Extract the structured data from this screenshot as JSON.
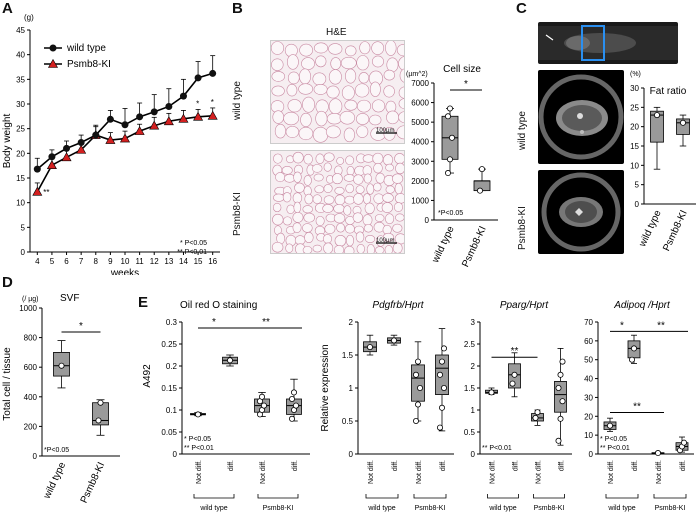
{
  "panels": {
    "A": "A",
    "B": "B",
    "C": "C",
    "D": "D",
    "E": "E"
  },
  "panelA": {
    "unit": "(g)",
    "notes": [
      "* P<0.05",
      "** P<0.01"
    ],
    "stars": {
      "s4": "**",
      "s15": "*",
      "s16": "*"
    }
  },
  "panelB": {
    "stain_title": "H&E",
    "row_wt": "wild type",
    "row_ki": "Psmb8-KI",
    "scale": "100µm",
    "note": "*P<0.05",
    "star": "*",
    "unit": "(µm^2)"
  },
  "panelC": {
    "row_wt": "wild type",
    "row_ki": "Psmb8-KI",
    "unit": "(%)"
  },
  "panelD": {
    "unit": "(/ µg)",
    "note": "*P<0.05",
    "star": "*"
  },
  "panelE": {
    "notes_a": [
      "* P<0.05",
      "** P<0.01"
    ],
    "note_c": "** P<0.01",
    "notes_d": [
      "* P<0.05",
      "** P<0.01"
    ],
    "cond": [
      "Not diff.",
      "diff.",
      "Not diff.",
      "diff."
    ],
    "groups": [
      "wild type",
      "Psmb8-KI"
    ]
  },
  "colors": {
    "wt": "#111111",
    "ki": "#d32020",
    "box": "#9a9a9a"
  },
  "chart_data": [
    {
      "type": "line",
      "title": "",
      "xlabel": "weeks",
      "ylabel": "Body weight",
      "x": [
        4,
        5,
        6,
        7,
        8,
        9,
        10,
        11,
        12,
        13,
        14,
        15,
        16
      ],
      "xlim": [
        3.5,
        16.5
      ],
      "ylim": [
        0,
        45
      ],
      "series": [
        {
          "name": "wild type",
          "values": [
            16.8,
            19.3,
            21.0,
            22.2,
            23.7,
            26.9,
            25.8,
            27.4,
            28.4,
            29.5,
            31.6,
            35.3,
            36.2
          ],
          "err": [
            2.2,
            1.4,
            1.5,
            1.5,
            2.0,
            1.8,
            3.3,
            2.8,
            3.5,
            3.6,
            3.4,
            3.3,
            3.6
          ]
        },
        {
          "name": "Psmb8-KI",
          "values": [
            12.2,
            17.6,
            19.2,
            20.7,
            23.7,
            22.7,
            23.0,
            24.5,
            25.6,
            26.5,
            27.0,
            27.4,
            27.6
          ],
          "err": [
            1.8,
            1.4,
            1.6,
            1.5,
            1.7,
            1.5,
            1.5,
            1.4,
            1.7,
            1.6,
            1.7,
            1.5,
            1.6
          ]
        }
      ]
    },
    {
      "type": "box",
      "title": "Cell size",
      "categories": [
        "wild type",
        "Psmb8-KI"
      ],
      "ylim": [
        0,
        7000
      ],
      "boxes": [
        {
          "min": 2400,
          "q1": 3100,
          "median": 4200,
          "q3": 5300,
          "max": 5700,
          "points": [
            2400,
            3100,
            4200,
            5300,
            5700
          ]
        },
        {
          "min": 1500,
          "q1": 1500,
          "median": 2000,
          "q3": 2000,
          "max": 2600,
          "points": [
            1500,
            2600
          ]
        }
      ]
    },
    {
      "type": "box",
      "title": "Fat ratio",
      "categories": [
        "wild type",
        "Psmb8-KI"
      ],
      "ylim": [
        0,
        30
      ],
      "boxes": [
        {
          "min": 9,
          "q1": 16,
          "median": 23,
          "q3": 24,
          "max": 25,
          "points": [
            23
          ]
        },
        {
          "min": 15,
          "q1": 18,
          "median": 21,
          "q3": 22,
          "max": 23,
          "points": [
            21
          ]
        }
      ]
    },
    {
      "type": "box",
      "title": "SVF",
      "ylabel": "Total cell / tissue",
      "categories": [
        "wild type",
        "Psmb8-KI"
      ],
      "ylim": [
        0,
        1000
      ],
      "boxes": [
        {
          "min": 460,
          "q1": 540,
          "median": 610,
          "q3": 700,
          "max": 780,
          "points": [
            610
          ]
        },
        {
          "min": 140,
          "q1": 210,
          "median": 240,
          "q3": 360,
          "max": 380,
          "points": [
            240,
            360
          ]
        }
      ]
    },
    {
      "type": "box",
      "title": "Oil red O staining",
      "ylabel": "A492",
      "categories": [
        "Not diff.",
        "diff.",
        "Not diff.",
        "diff."
      ],
      "ylim": [
        0,
        0.3
      ],
      "boxes": [
        {
          "min": 0.087,
          "q1": 0.089,
          "median": 0.09,
          "q3": 0.092,
          "max": 0.094,
          "points": [
            0.09
          ]
        },
        {
          "min": 0.2,
          "q1": 0.205,
          "median": 0.213,
          "q3": 0.22,
          "max": 0.225,
          "points": [
            0.213
          ]
        },
        {
          "min": 0.085,
          "q1": 0.095,
          "median": 0.11,
          "q3": 0.125,
          "max": 0.14,
          "points": [
            0.09,
            0.1,
            0.11,
            0.12,
            0.13
          ]
        },
        {
          "min": 0.075,
          "q1": 0.09,
          "median": 0.11,
          "q3": 0.125,
          "max": 0.17,
          "points": [
            0.08,
            0.1,
            0.11,
            0.125,
            0.14
          ]
        }
      ]
    },
    {
      "type": "box",
      "title": "Pdgfrb/Hprt",
      "ylabel": "Relative expression",
      "categories": [
        "Not diff.",
        "diff.",
        "Not diff.",
        "diff."
      ],
      "ylim": [
        0,
        2
      ],
      "boxes": [
        {
          "min": 1.5,
          "q1": 1.55,
          "median": 1.62,
          "q3": 1.7,
          "max": 1.8,
          "points": [
            1.62
          ]
        },
        {
          "min": 1.65,
          "q1": 1.68,
          "median": 1.72,
          "q3": 1.76,
          "max": 1.8,
          "points": [
            1.72
          ]
        },
        {
          "min": 0.5,
          "q1": 0.8,
          "median": 1.15,
          "q3": 1.35,
          "max": 1.7,
          "points": [
            0.5,
            0.75,
            1.0,
            1.2,
            1.4
          ]
        },
        {
          "min": 0.35,
          "q1": 0.9,
          "median": 1.3,
          "q3": 1.5,
          "max": 1.9,
          "points": [
            0.4,
            0.7,
            1.0,
            1.2,
            1.4,
            1.6
          ]
        }
      ]
    },
    {
      "type": "box",
      "title": "Pparg/Hprt",
      "categories": [
        "Not diff.",
        "diff.",
        "Not diff.",
        "diff."
      ],
      "ylim": [
        0,
        3
      ],
      "boxes": [
        {
          "min": 1.35,
          "q1": 1.38,
          "median": 1.4,
          "q3": 1.45,
          "max": 1.5,
          "points": [
            1.4
          ]
        },
        {
          "min": 1.3,
          "q1": 1.5,
          "median": 1.8,
          "q3": 2.05,
          "max": 2.3,
          "points": [
            1.6,
            1.8
          ]
        },
        {
          "min": 0.65,
          "q1": 0.75,
          "median": 0.82,
          "q3": 0.92,
          "max": 1.0,
          "points": [
            0.82,
            0.95
          ]
        },
        {
          "min": 0.2,
          "q1": 0.95,
          "median": 1.35,
          "q3": 1.65,
          "max": 2.4,
          "points": [
            0.3,
            0.8,
            1.2,
            1.5,
            1.8,
            2.1
          ]
        }
      ]
    },
    {
      "type": "box",
      "title": "Adipoq /Hprt",
      "categories": [
        "Not diff.",
        "diff.",
        "Not diff.",
        "diff."
      ],
      "ylim": [
        0,
        70
      ],
      "boxes": [
        {
          "min": 12,
          "q1": 13,
          "median": 15,
          "q3": 17,
          "max": 19,
          "points": [
            15
          ]
        },
        {
          "min": 48,
          "q1": 51,
          "median": 56,
          "q3": 60,
          "max": 63,
          "points": [
            50,
            56
          ]
        },
        {
          "min": 0.2,
          "q1": 0.3,
          "median": 0.5,
          "q3": 0.7,
          "max": 1.0,
          "points": [
            0.5
          ]
        },
        {
          "min": 1,
          "q1": 2,
          "median": 4,
          "q3": 6,
          "max": 9,
          "points": [
            2,
            4,
            6
          ]
        }
      ]
    }
  ]
}
